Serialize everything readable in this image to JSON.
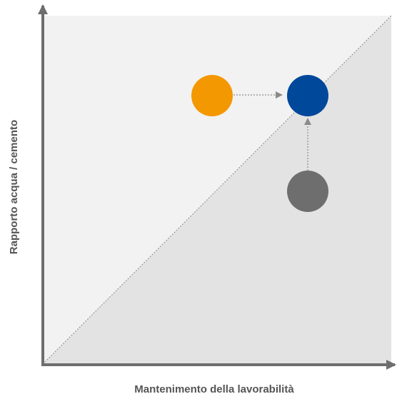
{
  "axes": {
    "x_label": "Mantenimento della lavorabilità",
    "y_label": "Rapporto acqua / cemento"
  },
  "colors": {
    "upper_region": "#f2f2f2",
    "lower_region": "#e3e3e3",
    "axis": "#6e6e6e",
    "orange": "#f39800",
    "blue": "#00489a",
    "gray": "#6e6e6e",
    "arrow": "#8a8a8a",
    "label": "#555555"
  },
  "points": [
    {
      "id": "orange",
      "color_key": "orange"
    },
    {
      "id": "blue",
      "color_key": "blue"
    },
    {
      "id": "gray",
      "color_key": "gray"
    }
  ],
  "arrows": [
    {
      "from": "orange",
      "to": "blue",
      "style": "dotted"
    },
    {
      "from": "gray",
      "to": "blue",
      "style": "dotted"
    }
  ]
}
